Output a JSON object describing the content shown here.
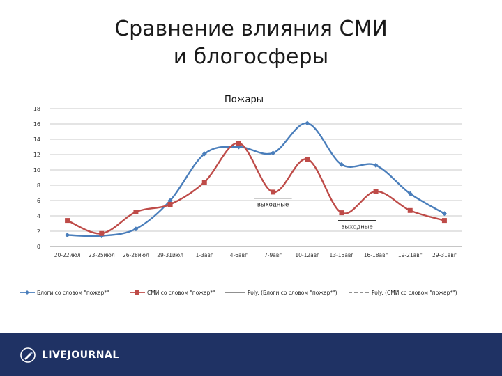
{
  "slide": {
    "title_line1": "Сравнение влияния СМИ",
    "title_line2": "и блогосферы"
  },
  "footer": {
    "logo_text": "LIVEJOURNAL",
    "background_color": "#1f3264"
  },
  "chart_data": {
    "type": "line",
    "title": "Пожары",
    "xlabel": "",
    "ylabel": "",
    "ylim": [
      0,
      18
    ],
    "yticks": [
      0,
      2,
      4,
      6,
      8,
      10,
      12,
      14,
      16,
      18
    ],
    "grid": true,
    "legend_position": "bottom",
    "categories": [
      "20-22июл",
      "23-25июл",
      "26-28июл",
      "29-31июл",
      "1-3авг",
      "4-6авг",
      "7-9авг",
      "10-12авг",
      "13-15авг",
      "16-18авг",
      "19-21авг",
      "29-31авг"
    ],
    "series": [
      {
        "name": "Блоги со словом \"пожар*\"",
        "color": "#4a7ebb",
        "marker": "diamond",
        "values": [
          1.5,
          1.4,
          2.3,
          6.0,
          12.1,
          13.0,
          12.2,
          16.1,
          10.7,
          10.6,
          6.9,
          4.3
        ]
      },
      {
        "name": "СМИ со словом \"пожар*\"",
        "color": "#be4b48",
        "marker": "square",
        "values": [
          3.4,
          1.7,
          4.5,
          5.5,
          8.4,
          13.5,
          7.1,
          11.4,
          4.4,
          7.2,
          4.7,
          3.4
        ]
      }
    ],
    "trendline_legend": [
      {
        "name": "Poly. (Блоги со словом \"пожар*\")",
        "style": "solid"
      },
      {
        "name": "Poly. (СМИ со словом \"пожар*\")",
        "style": "dashed"
      }
    ],
    "annotations": [
      {
        "text": "выходные",
        "x_from": 5.45,
        "x_to": 6.55,
        "y": 6.3
      },
      {
        "text": "выходные",
        "x_from": 7.9,
        "x_to": 9.0,
        "y": 3.4
      }
    ]
  }
}
